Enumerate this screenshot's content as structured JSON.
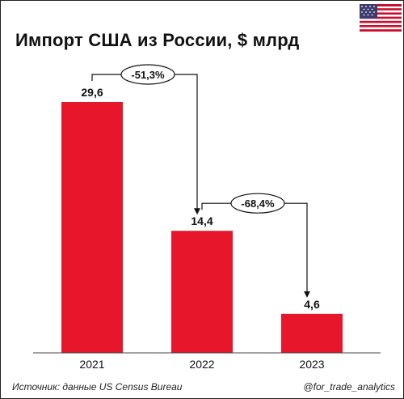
{
  "title": "Импорт США из России, $ млрд",
  "flag_icon": "usa-flag-icon",
  "footer": {
    "source": "Источник: данные US Census Bureau",
    "handle": "@for_trade_analytics"
  },
  "colors": {
    "bar": "#e8162b",
    "text": "#111111",
    "axis": "#444444"
  },
  "chart_data": {
    "type": "bar",
    "title": "Импорт США из России, $ млрд",
    "categories": [
      "2021",
      "2022",
      "2023"
    ],
    "values": [
      29.6,
      14.4,
      4.6
    ],
    "value_labels": [
      "29,6",
      "14,4",
      "4,6"
    ],
    "annotations": [
      {
        "from": "2021",
        "to": "2022",
        "text": "-51,3%"
      },
      {
        "from": "2022",
        "to": "2023",
        "text": "-68,4%"
      }
    ],
    "xlabel": "",
    "ylabel": "",
    "ylim": [
      0,
      29.6
    ],
    "grid": false,
    "legend": "none"
  }
}
